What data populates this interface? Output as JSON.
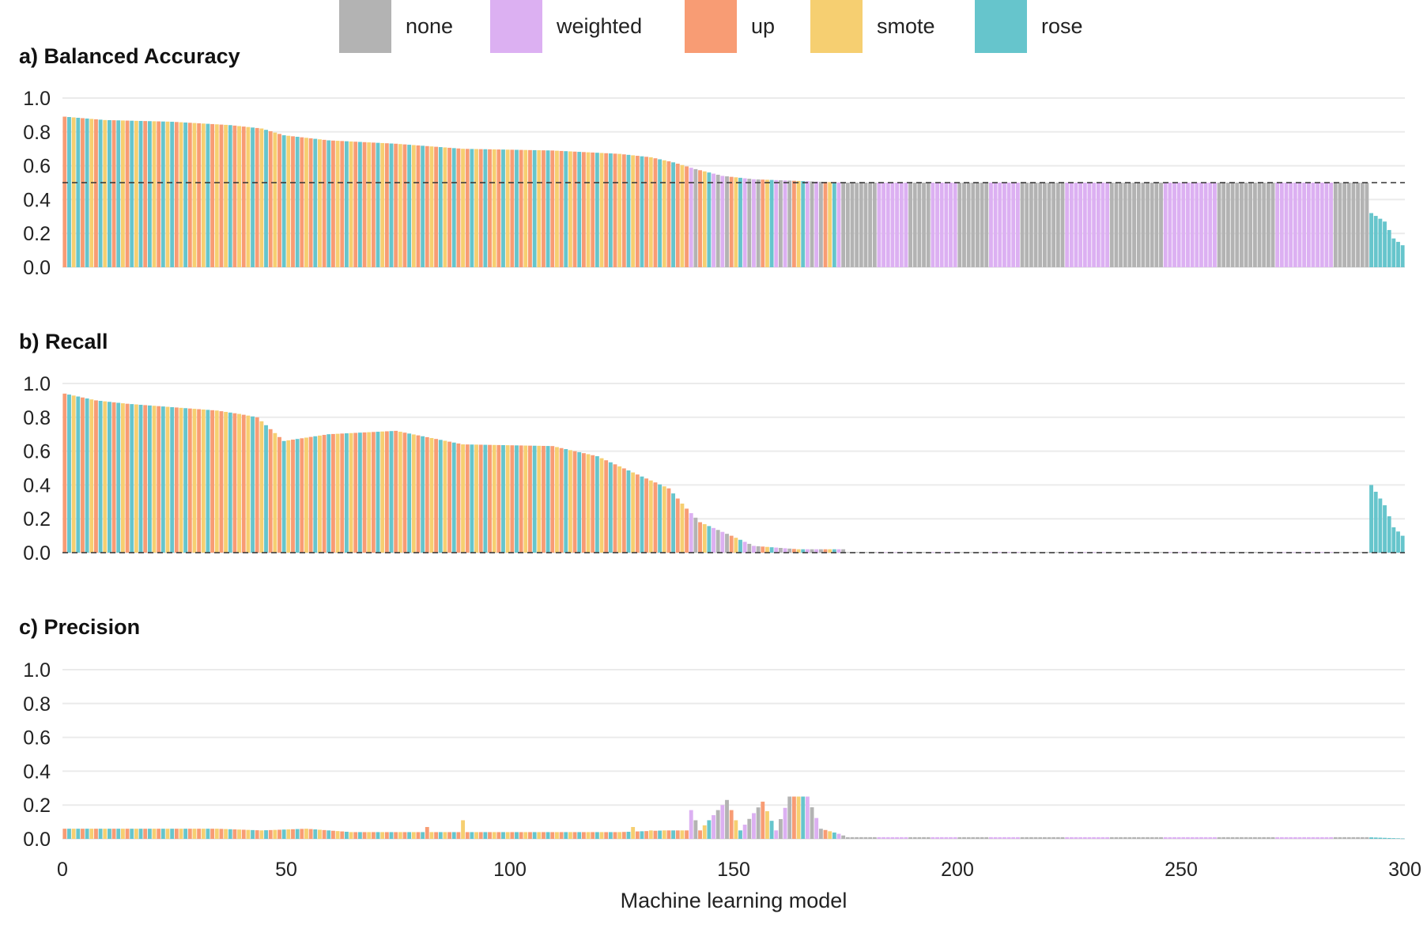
{
  "chart_data": {
    "type": "bar",
    "x": {
      "label": "Machine learning model",
      "range": [
        0,
        300
      ],
      "ticks": [
        0,
        50,
        100,
        150,
        200,
        250,
        300
      ],
      "tick_labels": [
        "0",
        "50",
        "100",
        "150",
        "200",
        "250",
        "300"
      ]
    },
    "y_ticks": [
      0.0,
      0.2,
      0.4,
      0.6,
      0.8,
      1.0
    ],
    "y_tick_labels": [
      "0.0",
      "0.2",
      "0.4",
      "0.6",
      "0.8",
      "1.0"
    ],
    "ylim": [
      0,
      1
    ],
    "grid": "horizontal",
    "legend": {
      "position": "top",
      "entries": [
        {
          "name": "none",
          "color": "#b3b3b3"
        },
        {
          "name": "weighted",
          "color": "#dcb0f2"
        },
        {
          "name": "up",
          "color": "#f89c74"
        },
        {
          "name": "smote",
          "color": "#f6cf71"
        },
        {
          "name": "rose",
          "color": "#66c5cc"
        }
      ]
    },
    "series_pattern_by_model_index": [
      {
        "from": 1,
        "to": 25,
        "sequence": [
          "up",
          "rose",
          "smote",
          "rose",
          "up",
          "rose",
          "smote"
        ]
      },
      {
        "from": 26,
        "to": 45,
        "sequence": [
          "up",
          "smote",
          "rose",
          "up",
          "smote"
        ]
      },
      {
        "from": 46,
        "to": 140,
        "sequence": [
          "rose",
          "up",
          "smote",
          "up",
          "rose",
          "smote",
          "up"
        ]
      },
      {
        "from": 141,
        "to": 175,
        "sequence": [
          "weighted",
          "none",
          "up",
          "smote",
          "rose",
          "weighted",
          "none"
        ]
      },
      {
        "from": 176,
        "to": 292,
        "blocks": [
          {
            "method": "none",
            "count": 7
          },
          {
            "method": "weighted",
            "count": 7
          },
          {
            "method": "none",
            "count": 5
          },
          {
            "method": "weighted",
            "count": 6
          },
          {
            "method": "none",
            "count": 7
          },
          {
            "method": "weighted",
            "count": 7
          },
          {
            "method": "none",
            "count": 10
          },
          {
            "method": "weighted",
            "count": 10
          },
          {
            "method": "none",
            "count": 12
          },
          {
            "method": "weighted",
            "count": 12
          },
          {
            "method": "none",
            "count": 13
          },
          {
            "method": "weighted",
            "count": 13
          },
          {
            "method": "none",
            "count": 8
          }
        ]
      },
      {
        "from": 293,
        "to": 300,
        "sequence": [
          "rose"
        ]
      }
    ],
    "panels": [
      {
        "title": "a) Balanced Accuracy",
        "reference_line": 0.5,
        "profile": [
          [
            1,
            0.89
          ],
          [
            10,
            0.87
          ],
          [
            25,
            0.86
          ],
          [
            38,
            0.84
          ],
          [
            45,
            0.82
          ],
          [
            50,
            0.78
          ],
          [
            60,
            0.75
          ],
          [
            75,
            0.73
          ],
          [
            90,
            0.7
          ],
          [
            110,
            0.69
          ],
          [
            125,
            0.67
          ],
          [
            132,
            0.65
          ],
          [
            137,
            0.62
          ],
          [
            142,
            0.58
          ],
          [
            148,
            0.54
          ],
          [
            155,
            0.52
          ],
          [
            175,
            0.5
          ],
          [
            292,
            0.5
          ],
          [
            293,
            0.32
          ],
          [
            296,
            0.27
          ],
          [
            298,
            0.17
          ],
          [
            300,
            0.13
          ]
        ]
      },
      {
        "title": "b) Recall",
        "reference_line": 0.0,
        "profile": [
          [
            1,
            0.94
          ],
          [
            8,
            0.9
          ],
          [
            15,
            0.88
          ],
          [
            25,
            0.86
          ],
          [
            35,
            0.84
          ],
          [
            40,
            0.82
          ],
          [
            44,
            0.8
          ],
          [
            50,
            0.66
          ],
          [
            60,
            0.7
          ],
          [
            75,
            0.72
          ],
          [
            90,
            0.64
          ],
          [
            110,
            0.63
          ],
          [
            120,
            0.57
          ],
          [
            130,
            0.45
          ],
          [
            136,
            0.38
          ],
          [
            140,
            0.26
          ],
          [
            143,
            0.18
          ],
          [
            150,
            0.1
          ],
          [
            155,
            0.04
          ],
          [
            165,
            0.02
          ],
          [
            175,
            0.02
          ],
          [
            176,
            0.003
          ],
          [
            292,
            0.003
          ],
          [
            293,
            0.4
          ],
          [
            296,
            0.28
          ],
          [
            298,
            0.15
          ],
          [
            300,
            0.1
          ]
        ]
      },
      {
        "title": "c) Precision",
        "reference_line": null,
        "profile": [
          [
            1,
            0.06
          ],
          [
            35,
            0.06
          ],
          [
            45,
            0.05
          ],
          [
            55,
            0.06
          ],
          [
            65,
            0.04
          ],
          [
            100,
            0.04
          ],
          [
            125,
            0.04
          ],
          [
            135,
            0.05
          ],
          [
            140,
            0.05
          ],
          [
            141,
            0.17
          ],
          [
            143,
            0.05
          ],
          [
            149,
            0.23
          ],
          [
            152,
            0.05
          ],
          [
            157,
            0.22
          ],
          [
            160,
            0.05
          ],
          [
            163,
            0.25
          ],
          [
            167,
            0.25
          ],
          [
            170,
            0.06
          ],
          [
            174,
            0.03
          ],
          [
            176,
            0.01
          ],
          [
            292,
            0.01
          ],
          [
            300,
            0.002
          ]
        ],
        "spikes": [
          [
            82,
            0.07
          ],
          [
            90,
            0.11
          ],
          [
            128,
            0.07
          ],
          [
            132,
            0.05
          ]
        ]
      }
    ]
  }
}
